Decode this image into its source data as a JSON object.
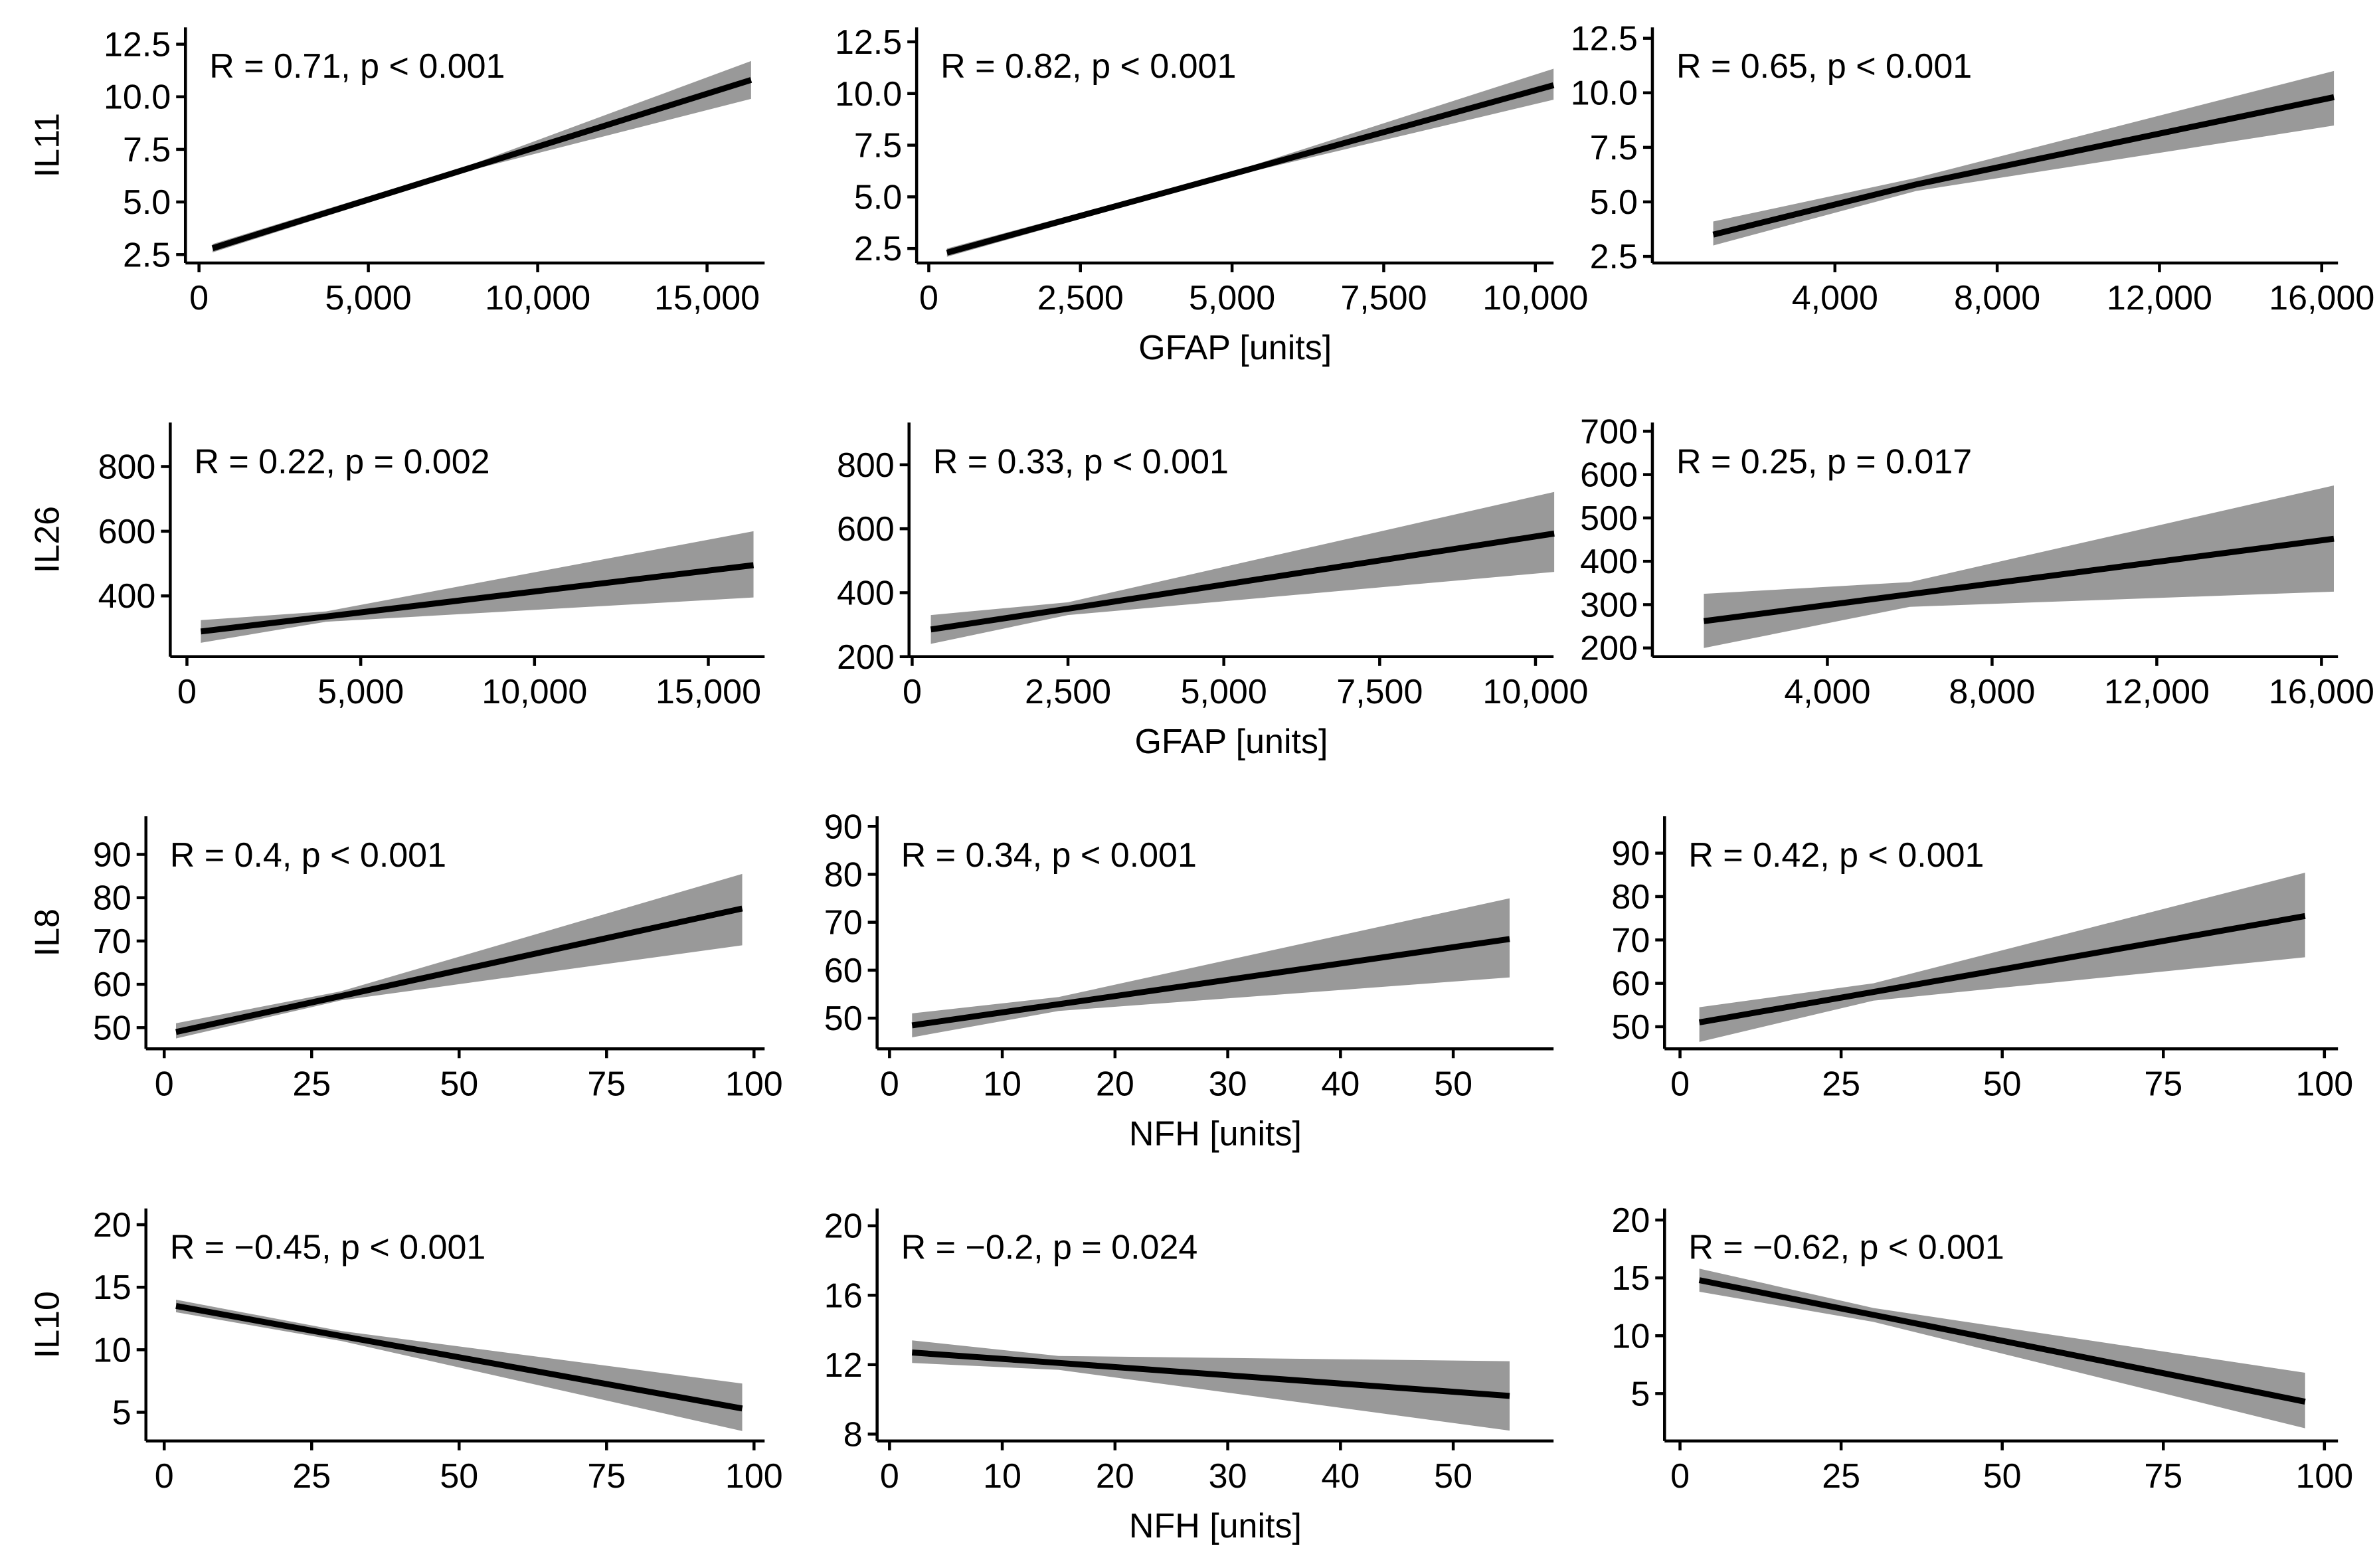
{
  "chart_data": [
    {
      "type": "line",
      "ylabel": "IL11",
      "annotation": "R = 0.71, p < 0.001",
      "color": "#000000",
      "band_color": "#999999",
      "x": [
        400,
        8000,
        16300
      ],
      "values": [
        2.8,
        6.62,
        10.8
      ],
      "lower": [
        2.6,
        6.5,
        9.9
      ],
      "upper": [
        3.0,
        6.75,
        11.7
      ],
      "xlim": [
        -400,
        16700
      ],
      "ylim": [
        2.1,
        13.3
      ],
      "xticks": [
        0,
        {
          "value": 5000,
          "label": "5,000"
        },
        {
          "value": 10000,
          "label": "10,000"
        },
        {
          "value": 15000,
          "label": "15,000"
        }
      ],
      "yticks": [
        2.5,
        {
          "value": 5,
          "label": "5.0"
        },
        7.5,
        {
          "value": 10,
          "label": "10.0"
        },
        12.5
      ]
    },
    {
      "type": "line",
      "xlabel": "GFAP [units]",
      "annotation": "R = 0.82, p < 0.001",
      "color": "#000000",
      "band_color": "#999999",
      "x": [
        300,
        5000,
        10300
      ],
      "values": [
        2.3,
        6.1,
        10.4
      ],
      "lower": [
        2.1,
        6.0,
        9.7
      ],
      "upper": [
        2.5,
        6.2,
        11.2
      ],
      "xlim": [
        -200,
        10300
      ],
      "ylim": [
        1.8,
        13.2
      ],
      "xticks": [
        0,
        {
          "value": 2500,
          "label": "2,500"
        },
        {
          "value": 5000,
          "label": "5,000"
        },
        {
          "value": 7500,
          "label": "7,500"
        },
        {
          "value": 10000,
          "label": "10,000"
        }
      ],
      "yticks": [
        2.5,
        {
          "value": 5,
          "label": "5.0"
        },
        7.5,
        {
          "value": 10,
          "label": "10.0"
        },
        12.5
      ]
    },
    {
      "type": "line",
      "annotation": "R = 0.65, p < 0.001",
      "color": "#000000",
      "band_color": "#999999",
      "x": [
        1000,
        6000,
        16300
      ],
      "values": [
        3.5,
        5.8,
        9.8
      ],
      "lower": [
        3.0,
        5.5,
        8.5
      ],
      "upper": [
        4.1,
        6.1,
        11.0
      ],
      "xlim": [
        -500,
        16400
      ],
      "ylim": [
        2.2,
        13.0
      ],
      "xticks": [
        {
          "value": 4000,
          "label": "4,000"
        },
        {
          "value": 8000,
          "label": "8,000"
        },
        {
          "value": 12000,
          "label": "12,000"
        },
        {
          "value": 16000,
          "label": "16,000"
        }
      ],
      "yticks": [
        2.5,
        {
          "value": 5,
          "label": "5.0"
        },
        7.5,
        {
          "value": 10,
          "label": "10.0"
        },
        12.5
      ]
    },
    {
      "type": "line",
      "ylabel": "IL26",
      "annotation": "R = 0.22, p = 0.002",
      "color": "#000000",
      "band_color": "#999999",
      "x": [
        400,
        4000,
        16300
      ],
      "values": [
        290,
        336,
        495
      ],
      "lower": [
        255,
        320,
        395
      ],
      "upper": [
        325,
        352,
        600
      ],
      "xlim": [
        -480,
        16620
      ],
      "ylim": [
        212,
        936
      ],
      "xticks": [
        0,
        {
          "value": 5000,
          "label": "5,000"
        },
        {
          "value": 10000,
          "label": "10,000"
        },
        {
          "value": 15000,
          "label": "15,000"
        }
      ],
      "yticks": [
        400,
        600,
        800
      ]
    },
    {
      "type": "line",
      "xlabel": "GFAP [units]",
      "annotation": "R = 0.33, p < 0.001",
      "color": "#000000",
      "band_color": "#999999",
      "x": [
        300,
        2500,
        10300
      ],
      "values": [
        285,
        350,
        585
      ],
      "lower": [
        240,
        330,
        465
      ],
      "upper": [
        330,
        370,
        715
      ],
      "xlim": [
        -50,
        10290
      ],
      "ylim": [
        200,
        932
      ],
      "xticks": [
        0,
        {
          "value": 2500,
          "label": "2,500"
        },
        {
          "value": 5000,
          "label": "5,000"
        },
        {
          "value": 7500,
          "label": "7,500"
        },
        {
          "value": 10000,
          "label": "10,000"
        }
      ],
      "yticks": [
        200,
        400,
        600,
        800
      ]
    },
    {
      "type": "line",
      "annotation": "R = 0.25, p = 0.017",
      "color": "#000000",
      "band_color": "#999999",
      "x": [
        1000,
        6000,
        16300
      ],
      "values": [
        262,
        324,
        452
      ],
      "lower": [
        200,
        295,
        330
      ],
      "upper": [
        325,
        352,
        575
      ],
      "xlim": [
        -250,
        16400
      ],
      "ylim": [
        180,
        720
      ],
      "xticks": [
        {
          "value": 4000,
          "label": "4,000"
        },
        {
          "value": 8000,
          "label": "8,000"
        },
        {
          "value": 12000,
          "label": "12,000"
        },
        {
          "value": 16000,
          "label": "16,000"
        }
      ],
      "yticks": [
        200,
        300,
        400,
        500,
        600,
        700
      ]
    },
    {
      "type": "line",
      "ylabel": "IL8",
      "annotation": "R = 0.4, p < 0.001",
      "color": "#000000",
      "band_color": "#999999",
      "x": [
        2,
        30,
        98
      ],
      "values": [
        49,
        57.3,
        77.5
      ],
      "lower": [
        47.5,
        56.3,
        69
      ],
      "upper": [
        51,
        58.4,
        85.5
      ],
      "xlim": [
        -3.1,
        101.8
      ],
      "ylim": [
        45.1,
        98.8
      ],
      "xticks": [
        0,
        25,
        50,
        75,
        100
      ],
      "yticks": [
        50,
        60,
        70,
        80,
        90
      ]
    },
    {
      "type": "line",
      "xlabel": "NFH [units]",
      "annotation": "R = 0.34, p < 0.001",
      "color": "#000000",
      "band_color": "#999999",
      "x": [
        2,
        15,
        55
      ],
      "values": [
        48.5,
        52.9,
        66.5
      ],
      "lower": [
        46,
        51.5,
        58.5
      ],
      "upper": [
        51,
        54.4,
        75
      ],
      "xlim": [
        -1.1,
        58.9
      ],
      "ylim": [
        43.6,
        92.1
      ],
      "xticks": [
        0,
        10,
        20,
        30,
        40,
        50
      ],
      "yticks": [
        50,
        60,
        70,
        80,
        90
      ]
    },
    {
      "type": "line",
      "annotation": "R = 0.42, p < 0.001",
      "color": "#000000",
      "band_color": "#999999",
      "x": [
        3,
        30,
        97
      ],
      "values": [
        51,
        58,
        75.5
      ],
      "lower": [
        46.5,
        56,
        66
      ],
      "upper": [
        54.5,
        60,
        85.5
      ],
      "xlim": [
        -2.4,
        102.1
      ],
      "ylim": [
        44.9,
        98.5
      ],
      "xticks": [
        0,
        25,
        50,
        75,
        100
      ],
      "yticks": [
        50,
        60,
        70,
        80,
        90
      ]
    },
    {
      "type": "line",
      "ylabel": "IL10",
      "annotation": "R = −0.45, p < 0.001",
      "color": "#000000",
      "band_color": "#999999",
      "x": [
        2,
        30,
        98
      ],
      "values": [
        13.5,
        11.1,
        5.3
      ],
      "lower": [
        13,
        10.7,
        3.5
      ],
      "upper": [
        14,
        11.5,
        7.3
      ],
      "xlim": [
        -3.1,
        101.8
      ],
      "ylim": [
        2.7,
        21.3
      ],
      "xticks": [
        0,
        25,
        50,
        75,
        100
      ],
      "yticks": [
        5,
        10,
        15,
        20
      ]
    },
    {
      "type": "line",
      "xlabel": "NFH [units]",
      "annotation": "R = −0.2, p = 0.024",
      "color": "#000000",
      "band_color": "#999999",
      "x": [
        2,
        15,
        55
      ],
      "values": [
        12.7,
        12.1,
        10.2
      ],
      "lower": [
        12.1,
        11.7,
        8.2
      ],
      "upper": [
        13.4,
        12.5,
        12.2
      ],
      "xlim": [
        -1.1,
        58.9
      ],
      "ylim": [
        7.6,
        21.0
      ],
      "xticks": [
        0,
        10,
        20,
        30,
        40,
        50
      ],
      "yticks": [
        8,
        12,
        16,
        20
      ]
    },
    {
      "type": "line",
      "annotation": "R = −0.62, p < 0.001",
      "color": "#000000",
      "band_color": "#999999",
      "x": [
        3,
        30,
        97
      ],
      "values": [
        14.8,
        11.8,
        4.3
      ],
      "lower": [
        13.8,
        11.2,
        2.0
      ],
      "upper": [
        15.8,
        12.4,
        6.8
      ],
      "xlim": [
        -2.4,
        102.1
      ],
      "ylim": [
        0.9,
        21.0
      ],
      "xticks": [
        0,
        25,
        50,
        75,
        100
      ],
      "yticks": [
        5,
        10,
        15,
        20
      ]
    }
  ]
}
